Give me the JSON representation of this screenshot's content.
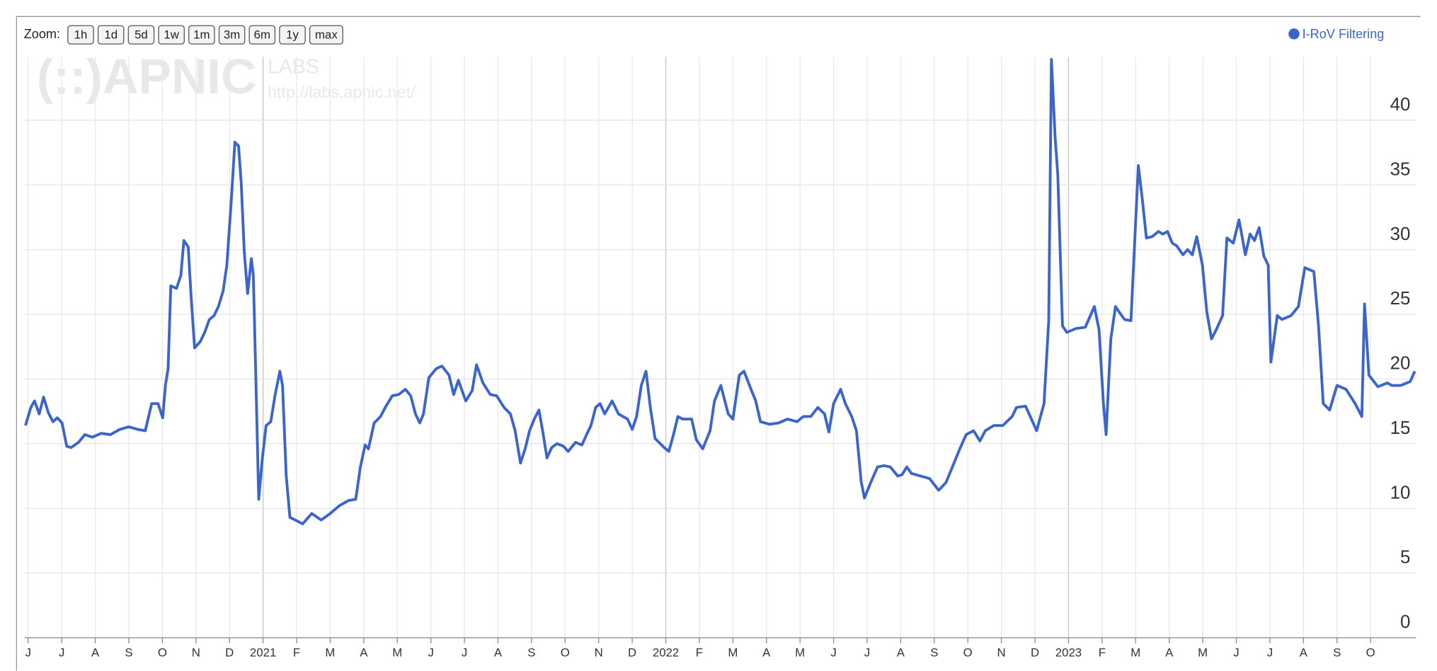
{
  "toolbar": {
    "label": "Zoom:",
    "buttons": [
      "1h",
      "1d",
      "5d",
      "1w",
      "1m",
      "3m",
      "6m",
      "1y",
      "max"
    ]
  },
  "watermark": {
    "logo": "APNIC",
    "sub": "LABS",
    "url": "http://labs.apnic.net/"
  },
  "chart_data": {
    "type": "line",
    "x": [
      -0.08,
      0.08,
      0.19,
      0.33,
      0.46,
      0.6,
      0.74,
      0.87,
      1.01,
      1.15,
      1.28,
      1.5,
      1.69,
      1.91,
      2.18,
      2.45,
      2.73,
      3.0,
      3.27,
      3.49,
      3.68,
      3.87,
      4.01,
      4.09,
      4.17,
      4.25,
      4.42,
      4.55,
      4.64,
      4.77,
      4.85,
      4.96,
      5.13,
      5.26,
      5.4,
      5.54,
      5.67,
      5.81,
      5.92,
      6.05,
      6.16,
      6.27,
      6.35,
      6.44,
      6.54,
      6.65,
      6.71,
      6.79,
      6.87,
      6.98,
      7.09,
      7.23,
      7.36,
      7.5,
      7.58,
      7.69,
      7.8,
      7.96,
      8.18,
      8.45,
      8.73,
      9.0,
      9.27,
      9.54,
      9.76,
      9.9,
      10.04,
      10.14,
      10.31,
      10.5,
      10.64,
      10.85,
      11.04,
      11.24,
      11.4,
      11.54,
      11.67,
      11.78,
      11.94,
      12.16,
      12.33,
      12.54,
      12.68,
      12.82,
      13.04,
      13.23,
      13.36,
      13.55,
      13.77,
      13.96,
      14.18,
      14.37,
      14.51,
      14.67,
      14.81,
      14.94,
      15.08,
      15.22,
      15.33,
      15.46,
      15.6,
      15.76,
      15.95,
      16.09,
      16.31,
      16.5,
      16.64,
      16.77,
      16.91,
      17.04,
      17.18,
      17.4,
      17.59,
      17.86,
      18.0,
      18.13,
      18.27,
      18.41,
      18.54,
      18.68,
      18.95,
      19.09,
      19.23,
      19.36,
      19.5,
      19.63,
      19.77,
      19.91,
      20.1,
      20.32,
      20.45,
      20.64,
      20.86,
      21.0,
      21.19,
      21.33,
      21.54,
      21.68,
      21.82,
      22.09,
      22.36,
      22.63,
      22.91,
      23.1,
      23.32,
      23.53,
      23.73,
      23.86,
      24.0,
      24.21,
      24.35,
      24.54,
      24.68,
      24.82,
      24.92,
      25.09,
      25.31,
      25.5,
      25.69,
      25.91,
      26.04,
      26.18,
      26.32,
      26.59,
      26.86,
      27.13,
      27.35,
      27.54,
      27.76,
      27.95,
      28.17,
      28.36,
      28.52,
      28.77,
      29.04,
      29.32,
      29.45,
      29.72,
      29.86,
      30.05,
      30.27,
      30.41,
      30.49,
      30.6,
      30.68,
      30.82,
      30.95,
      31.22,
      31.5,
      31.77,
      31.91,
      32.04,
      32.12,
      32.26,
      32.4,
      32.53,
      32.67,
      32.86,
      33.08,
      33.19,
      33.32,
      33.49,
      33.68,
      33.81,
      33.95,
      34.09,
      34.22,
      34.41,
      34.55,
      34.69,
      34.82,
      34.99,
      35.12,
      35.26,
      35.4,
      35.59,
      35.72,
      35.91,
      36.08,
      36.27,
      36.41,
      36.54,
      36.68,
      36.82,
      36.95,
      37.03,
      37.22,
      37.36,
      37.63,
      37.85,
      38.04,
      38.31,
      38.45,
      38.59,
      38.78,
      39.0,
      39.27,
      39.54,
      39.74,
      39.82,
      39.95,
      40.22,
      40.5,
      40.63,
      40.9,
      41.18,
      41.32
    ],
    "series": [
      {
        "name": "I-RoV Filtering",
        "color": "#3c65cc",
        "values": [
          16.4,
          17.8,
          18.3,
          17.3,
          18.6,
          17.4,
          16.7,
          17.0,
          16.6,
          14.8,
          14.7,
          15.1,
          15.7,
          15.5,
          15.8,
          15.7,
          16.1,
          16.3,
          16.1,
          16.0,
          18.1,
          18.1,
          17.0,
          19.5,
          20.8,
          27.2,
          27.0,
          28.0,
          30.7,
          30.2,
          26.6,
          22.4,
          22.9,
          23.6,
          24.6,
          24.9,
          25.6,
          26.8,
          28.8,
          33.7,
          38.3,
          38.0,
          35.1,
          29.8,
          26.6,
          29.3,
          28.0,
          19.5,
          10.7,
          13.9,
          16.4,
          16.7,
          18.8,
          20.6,
          19.5,
          12.5,
          9.3,
          9.1,
          8.8,
          9.6,
          9.1,
          9.6,
          10.2,
          10.6,
          10.7,
          13.2,
          14.9,
          14.6,
          16.6,
          17.1,
          17.8,
          18.7,
          18.8,
          19.2,
          18.7,
          17.3,
          16.6,
          17.3,
          20.1,
          20.8,
          21.0,
          20.3,
          18.8,
          19.9,
          18.3,
          19.1,
          21.1,
          19.7,
          18.8,
          18.7,
          17.8,
          17.3,
          16.0,
          13.5,
          14.6,
          16.0,
          16.9,
          17.6,
          16.0,
          13.9,
          14.7,
          15.0,
          14.8,
          14.4,
          15.1,
          14.9,
          15.7,
          16.4,
          17.8,
          18.1,
          17.3,
          18.3,
          17.3,
          16.9,
          16.1,
          17.1,
          19.5,
          20.6,
          17.8,
          15.4,
          14.7,
          14.4,
          15.7,
          17.1,
          16.9,
          16.9,
          16.9,
          15.3,
          14.6,
          16.0,
          18.3,
          19.5,
          17.3,
          16.9,
          20.3,
          20.6,
          19.2,
          18.3,
          16.7,
          16.5,
          16.6,
          16.9,
          16.7,
          17.1,
          17.1,
          17.8,
          17.3,
          15.9,
          18.1,
          19.2,
          18.1,
          17.1,
          16.0,
          12.1,
          10.8,
          11.9,
          13.2,
          13.3,
          13.2,
          12.5,
          12.6,
          13.2,
          12.7,
          12.5,
          12.3,
          11.4,
          12.0,
          13.2,
          14.6,
          15.7,
          16.0,
          15.2,
          16.0,
          16.4,
          16.4,
          17.1,
          17.8,
          17.9,
          17.1,
          16.0,
          18.1,
          24.5,
          44.7,
          38.7,
          35.8,
          24.1,
          23.6,
          23.9,
          24.0,
          25.6,
          23.8,
          18.1,
          15.7,
          23.1,
          25.6,
          25.1,
          24.6,
          24.5,
          36.5,
          34.1,
          30.9,
          31.0,
          31.4,
          31.2,
          31.4,
          30.5,
          30.3,
          29.6,
          30.0,
          29.6,
          31.0,
          28.8,
          25.2,
          23.1,
          23.8,
          24.9,
          30.9,
          30.5,
          32.3,
          29.6,
          31.2,
          30.7,
          31.7,
          29.5,
          28.8,
          21.3,
          24.9,
          24.6,
          24.9,
          25.6,
          28.6,
          28.3,
          24.1,
          18.1,
          17.6,
          19.5,
          19.2,
          18.1,
          17.1,
          25.8,
          20.3,
          19.4,
          19.7,
          19.5,
          19.5,
          19.8,
          20.6
        ]
      }
    ],
    "xlim": [
      -0.1,
      41.35
    ],
    "xticks": [
      {
        "value": 0,
        "label": "J"
      },
      {
        "value": 1,
        "label": "J"
      },
      {
        "value": 2,
        "label": "A"
      },
      {
        "value": 3,
        "label": "S"
      },
      {
        "value": 4,
        "label": "O"
      },
      {
        "value": 5,
        "label": "N"
      },
      {
        "value": 6,
        "label": "D"
      },
      {
        "value": 7,
        "label": "2021"
      },
      {
        "value": 8,
        "label": "F"
      },
      {
        "value": 9,
        "label": "M"
      },
      {
        "value": 10,
        "label": "A"
      },
      {
        "value": 11,
        "label": "M"
      },
      {
        "value": 12,
        "label": "J"
      },
      {
        "value": 13,
        "label": "J"
      },
      {
        "value": 14,
        "label": "A"
      },
      {
        "value": 15,
        "label": "S"
      },
      {
        "value": 16,
        "label": "O"
      },
      {
        "value": 17,
        "label": "N"
      },
      {
        "value": 18,
        "label": "D"
      },
      {
        "value": 19,
        "label": "2022"
      },
      {
        "value": 20,
        "label": "F"
      },
      {
        "value": 21,
        "label": "M"
      },
      {
        "value": 22,
        "label": "A"
      },
      {
        "value": 23,
        "label": "M"
      },
      {
        "value": 24,
        "label": "J"
      },
      {
        "value": 25,
        "label": "J"
      },
      {
        "value": 26,
        "label": "A"
      },
      {
        "value": 27,
        "label": "S"
      },
      {
        "value": 28,
        "label": "O"
      },
      {
        "value": 29,
        "label": "N"
      },
      {
        "value": 30,
        "label": "D"
      },
      {
        "value": 31,
        "label": "2023"
      },
      {
        "value": 32,
        "label": "F"
      },
      {
        "value": 33,
        "label": "M"
      },
      {
        "value": 34,
        "label": "A"
      },
      {
        "value": 35,
        "label": "M"
      },
      {
        "value": 36,
        "label": "J"
      },
      {
        "value": 37,
        "label": "J"
      },
      {
        "value": 38,
        "label": "A"
      },
      {
        "value": 39,
        "label": "S"
      },
      {
        "value": 40,
        "label": "O"
      }
    ],
    "ylim": [
      0,
      44.9
    ],
    "yticks": [
      0,
      5,
      10,
      15,
      20,
      25,
      30,
      35,
      40
    ],
    "grid": true,
    "legend": "top-right"
  }
}
